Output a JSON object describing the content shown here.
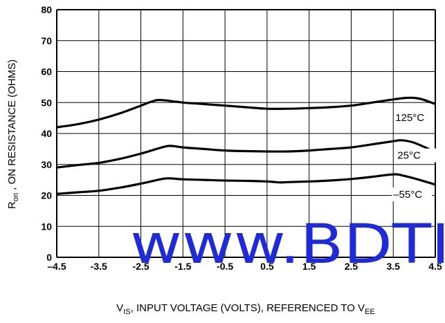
{
  "chart_data": {
    "type": "line",
    "title": "",
    "xlabel": {
      "main": "V",
      "sub": "IS",
      "tail": ", INPUT VOLTAGE (VOLTS), REFERENCED TO V",
      "sub2": "EE"
    },
    "ylabel": {
      "main": "R",
      "sub": "on",
      "tail": " , ON RESISTANCE (OHMS)"
    },
    "xlim": [
      -4.5,
      4.5
    ],
    "ylim": [
      0,
      80
    ],
    "x_ticks": [
      "–4.5",
      "-3.5",
      "-2.5",
      "-1.5",
      "-0.5",
      "0.5",
      "1.5",
      "2.5",
      "3.5",
      "4.5"
    ],
    "y_ticks": [
      "0",
      "10",
      "20",
      "30",
      "40",
      "50",
      "60",
      "70",
      "80"
    ],
    "grid": true,
    "series": [
      {
        "name": "125°C",
        "x": [
          -4.5,
          -4.0,
          -3.5,
          -3.0,
          -2.5,
          -2.2,
          -2.0,
          -1.5,
          -1.0,
          -0.5,
          0.0,
          0.5,
          1.0,
          1.5,
          2.0,
          2.5,
          3.0,
          3.5,
          3.8,
          4.0,
          4.2,
          4.5
        ],
        "y": [
          42,
          43,
          44.5,
          46.5,
          49,
          50.5,
          50.8,
          50,
          49.5,
          49,
          48.5,
          48,
          48,
          48.2,
          48.5,
          49,
          50,
          51,
          51.5,
          51.5,
          51,
          49.5
        ]
      },
      {
        "name": "25°C",
        "x": [
          -4.5,
          -4.0,
          -3.5,
          -3.0,
          -2.5,
          -2.0,
          -1.8,
          -1.5,
          -1.0,
          -0.5,
          0.0,
          0.5,
          1.0,
          1.5,
          2.0,
          2.5,
          3.0,
          3.5,
          3.7,
          4.0,
          4.5
        ],
        "y": [
          29,
          29.8,
          30.5,
          31.8,
          33.5,
          35.5,
          36,
          35.5,
          35,
          34.5,
          34.3,
          34.2,
          34.2,
          34.5,
          35,
          35.5,
          36.5,
          37.5,
          37.8,
          37,
          34
        ]
      },
      {
        "name": "-55°C",
        "x": [
          -4.5,
          -4.0,
          -3.5,
          -3.0,
          -2.5,
          -2.0,
          -1.8,
          -1.5,
          -1.0,
          -0.5,
          0.0,
          0.5,
          0.8,
          1.0,
          1.5,
          2.0,
          2.5,
          3.0,
          3.5,
          3.7,
          4.0,
          4.5
        ],
        "y": [
          20.5,
          21,
          21.5,
          22.5,
          23.8,
          25.3,
          25.5,
          25.2,
          25,
          24.8,
          24.7,
          24.5,
          24.2,
          24.3,
          24.5,
          24.8,
          25.3,
          26,
          26.8,
          26.5,
          25.5,
          23.5
        ]
      }
    ],
    "annotations": [
      {
        "text": "125°C",
        "series": 0
      },
      {
        "text": "25°C",
        "series": 1
      },
      {
        "text": "–55°C",
        "series": 2
      }
    ],
    "watermark": "www.BDTI"
  }
}
